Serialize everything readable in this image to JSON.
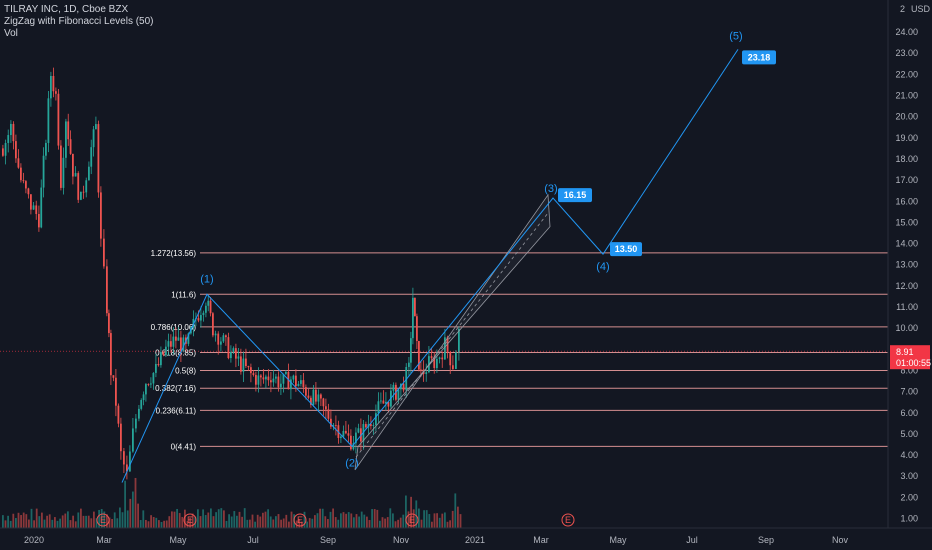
{
  "header": {
    "symbol": "TILRAY INC, 1D, Cboe BZX",
    "indicator": "ZigZag with Fibonacci Levels (50)",
    "volume_label": "Vol"
  },
  "price_axis": {
    "currency": "USD",
    "top_corner_label": "2",
    "ticks": [
      "1.00",
      "2.00",
      "3.00",
      "4.00",
      "5.00",
      "6.00",
      "7.00",
      "8.00",
      "9.00",
      "10.00",
      "11.00",
      "12.00",
      "13.00",
      "14.00",
      "15.00",
      "16.00",
      "17.00",
      "18.00",
      "19.00",
      "20.00",
      "21.00",
      "22.00",
      "23.00",
      "24.00"
    ],
    "current_price": "8.91",
    "countdown": "01:00:55",
    "current_price_color": "#f23645"
  },
  "time_axis": {
    "ticks": [
      "2020",
      "Mar",
      "May",
      "Jul",
      "Sep",
      "Nov",
      "2021",
      "Mar",
      "May",
      "Jul",
      "Sep",
      "Nov"
    ],
    "earnings_marker": "E"
  },
  "colors": {
    "background": "#131722",
    "up": "#26a69a",
    "down": "#ef5350",
    "zigzag": "#2196f3",
    "fib_line": "#f7a3a3",
    "channel": "#9598a1"
  },
  "chart_data": {
    "type": "candlestick",
    "x": [
      "2020-01",
      "2020-02",
      "2020-03",
      "2020-04",
      "2020-05",
      "2020-06",
      "2020-07",
      "2020-08",
      "2020-09",
      "2020-10",
      "2020-11",
      "2020-12"
    ],
    "close": [
      19.0,
      22.0,
      5.0,
      8.5,
      9.5,
      8.0,
      7.5,
      7.2,
      5.0,
      6.5,
      8.5,
      8.91
    ],
    "ylim": [
      0.5,
      24.8
    ],
    "fib_levels": [
      {
        "ratio": "1.272",
        "price": 13.56,
        "label": "1.272(13.56)"
      },
      {
        "ratio": "1",
        "price": 11.6,
        "label": "1(11.6)"
      },
      {
        "ratio": "0.786",
        "price": 10.06,
        "label": "0.786(10.06)"
      },
      {
        "ratio": "0.618",
        "price": 8.85,
        "label": "0.618(8.85)"
      },
      {
        "ratio": "0.5",
        "price": 8.0,
        "label": "0.5(8)"
      },
      {
        "ratio": "0.382",
        "price": 7.16,
        "label": "0.382(7.16)"
      },
      {
        "ratio": "0.236",
        "price": 6.11,
        "label": "0.236(6.11)"
      },
      {
        "ratio": "0",
        "price": 4.41,
        "label": "0(4.41)"
      }
    ],
    "waves": [
      {
        "label": "(1)",
        "date": "2020-05-28",
        "price": 11.6
      },
      {
        "label": "(2)",
        "date": "2020-09-24",
        "price": 4.41
      },
      {
        "label": "(3)",
        "date": "2021-02-10",
        "price": 16.15
      },
      {
        "label": "(4)",
        "date": "2021-04-05",
        "price": 13.5
      },
      {
        "label": "(5)",
        "date": "2021-08-25",
        "price": 23.18
      }
    ],
    "targets": [
      "16.15",
      "13.50",
      "23.18"
    ]
  }
}
